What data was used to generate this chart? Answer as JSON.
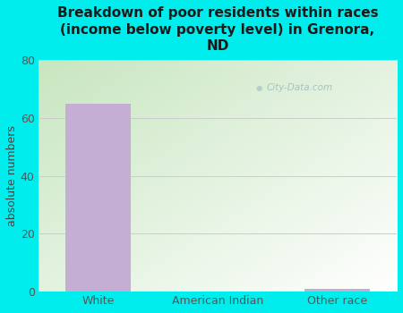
{
  "title": "Breakdown of poor residents within races\n(income below poverty level) in Grenora,\nND",
  "categories": [
    "White",
    "American Indian",
    "Other race"
  ],
  "values": [
    65,
    0,
    1
  ],
  "bar_color": "#c4aed4",
  "ylabel": "absolute numbers",
  "ylim": [
    0,
    80
  ],
  "yticks": [
    0,
    20,
    40,
    60,
    80
  ],
  "bg_color": "#00eded",
  "plot_bg_color_topleft": "#c8e6c0",
  "plot_bg_color_bottomright": "#ffffff",
  "grid_color": "#cccccc",
  "grid_linewidth": 0.7,
  "title_color": "#1a1a1a",
  "axis_label_color": "#444444",
  "tick_label_color": "#555555",
  "watermark_text": "City-Data.com",
  "title_fontsize": 11,
  "ylabel_fontsize": 9,
  "tick_fontsize": 9
}
